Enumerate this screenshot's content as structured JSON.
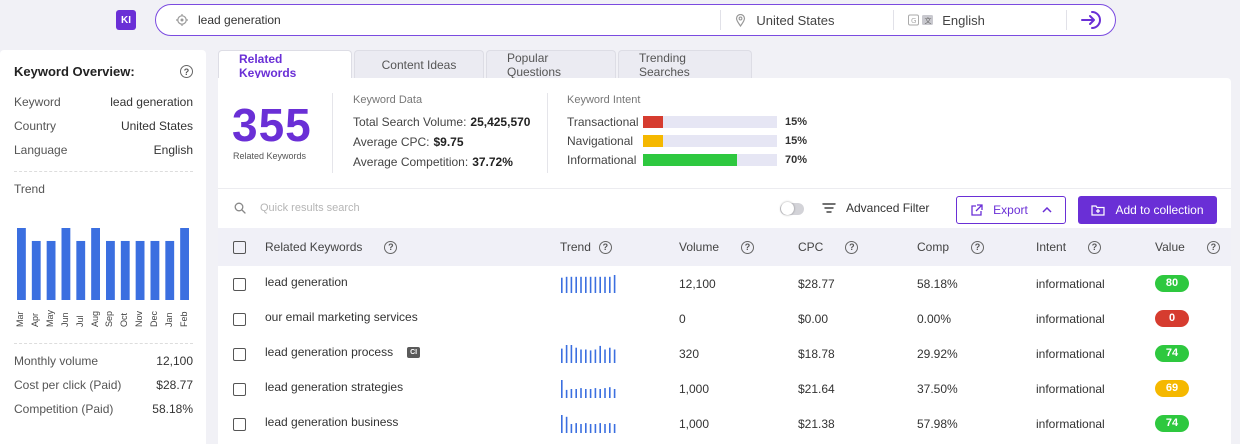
{
  "app": {
    "logo_text": "KI"
  },
  "search": {
    "keyword": "lead generation",
    "country": "United States",
    "language": "English"
  },
  "overview": {
    "title": "Keyword Overview:",
    "rows": [
      {
        "label": "Keyword",
        "value": "lead generation"
      },
      {
        "label": "Country",
        "value": "United States"
      },
      {
        "label": "Language",
        "value": "English"
      }
    ],
    "trend_label": "Trend",
    "trend_months": [
      "Mar",
      "Apr",
      "May",
      "Jun",
      "Jul",
      "Aug",
      "Sep",
      "Oct",
      "Nov",
      "Dec",
      "Jan",
      "Feb"
    ],
    "trend_values": [
      1.0,
      0.82,
      0.82,
      1.0,
      0.82,
      1.0,
      0.82,
      0.82,
      0.82,
      0.82,
      0.82,
      1.0
    ],
    "metrics": [
      {
        "label": "Monthly volume",
        "value": "12,100"
      },
      {
        "label": "Cost per click (Paid)",
        "value": "$28.77"
      },
      {
        "label": "Competition (Paid)",
        "value": "58.18%"
      }
    ]
  },
  "tabs": [
    {
      "label": "Related Keywords",
      "active": true
    },
    {
      "label": "Content Ideas",
      "active": false
    },
    {
      "label": "Popular Questions",
      "active": false
    },
    {
      "label": "Trending Searches",
      "active": false
    }
  ],
  "summary": {
    "count": "355",
    "count_label": "Related Keywords",
    "keyword_data_title": "Keyword Data",
    "total_search_volume_label": "Total Search Volume:",
    "total_search_volume": "25,425,570",
    "avg_cpc_label": "Average CPC:",
    "avg_cpc": "$9.75",
    "avg_comp_label": "Average Competition:",
    "avg_comp": "37.72%",
    "intent_title": "Keyword Intent",
    "intents": [
      {
        "label": "Transactional",
        "pct": "15%",
        "fraction": 0.15,
        "color": "#d63c2f"
      },
      {
        "label": "Navigational",
        "pct": "15%",
        "fraction": 0.15,
        "color": "#f5b800"
      },
      {
        "label": "Informational",
        "pct": "70%",
        "fraction": 0.7,
        "color": "#2ec83f"
      }
    ]
  },
  "toolbar": {
    "search_placeholder": "Quick results search",
    "advanced_filter": "Advanced Filter",
    "export": "Export",
    "add_to_collection": "Add to collection"
  },
  "table": {
    "headers": {
      "keyword": "Related Keywords",
      "trend": "Trend",
      "volume": "Volume",
      "cpc": "CPC",
      "comp": "Comp",
      "intent": "Intent",
      "value": "Value"
    },
    "rows": [
      {
        "keyword": "lead generation",
        "ci": false,
        "trend": [
          0.85,
          0.9,
          0.9,
          0.9,
          0.9,
          0.9,
          0.9,
          0.9,
          0.9,
          0.9,
          0.9,
          1.0
        ],
        "volume": "12,100",
        "cpc": "$28.77",
        "comp": "58.18%",
        "intent": "informational",
        "value": "80",
        "value_color": "#2ec83f"
      },
      {
        "keyword": "our email marketing services",
        "ci": false,
        "trend": [],
        "volume": "0",
        "cpc": "$0.00",
        "comp": "0.00%",
        "intent": "informational",
        "value": "0",
        "value_color": "#d63c2f"
      },
      {
        "keyword": "lead generation process",
        "ci": true,
        "ci_label": "CI",
        "trend": [
          0.8,
          1.0,
          1.0,
          0.85,
          0.75,
          0.75,
          0.7,
          0.75,
          0.95,
          0.75,
          0.85,
          0.75
        ],
        "volume": "320",
        "cpc": "$18.78",
        "comp": "29.92%",
        "intent": "informational",
        "value": "74",
        "value_color": "#2ec83f"
      },
      {
        "keyword": "lead generation strategies",
        "ci": false,
        "trend": [
          1.0,
          0.45,
          0.5,
          0.5,
          0.55,
          0.5,
          0.5,
          0.55,
          0.5,
          0.55,
          0.6,
          0.5
        ],
        "volume": "1,000",
        "cpc": "$21.64",
        "comp": "37.50%",
        "intent": "informational",
        "value": "69",
        "value_color": "#f5b800"
      },
      {
        "keyword": "lead generation business",
        "ci": false,
        "trend": [
          1.0,
          0.9,
          0.5,
          0.55,
          0.5,
          0.55,
          0.5,
          0.5,
          0.55,
          0.5,
          0.55,
          0.5
        ],
        "volume": "1,000",
        "cpc": "$21.38",
        "comp": "57.98%",
        "intent": "informational",
        "value": "74",
        "value_color": "#2ec83f"
      }
    ]
  }
}
